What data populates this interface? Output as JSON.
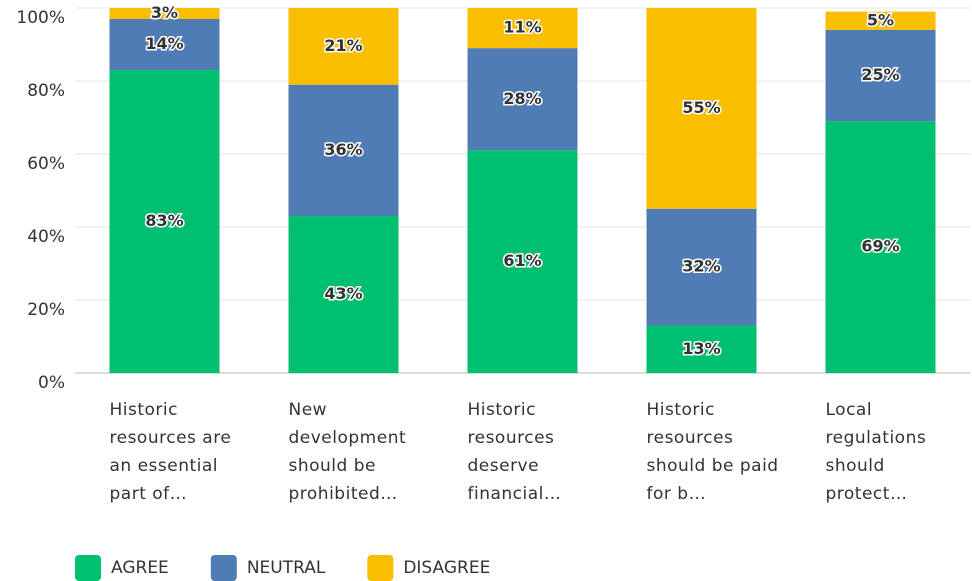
{
  "chart_data": {
    "type": "stacked_bar",
    "categories": [
      "Historic resources are an essential part of…",
      "New development should be prohibited…",
      "Historic resources deserve financial…",
      "Historic resources should be paid for b…",
      "Local regulations should protect…"
    ],
    "series": [
      {
        "name": "AGREE",
        "color": "#00bf6f",
        "values": [
          83,
          43,
          61,
          13,
          69
        ],
        "value_labels": [
          "83%",
          "43%",
          "61%",
          "13%",
          "69%"
        ]
      },
      {
        "name": "NEUTRAL",
        "color": "#507cb6",
        "values": [
          14,
          36,
          28,
          32,
          25
        ],
        "value_labels": [
          "14%",
          "36%",
          "28%",
          "32%",
          "25%"
        ]
      },
      {
        "name": "DISAGREE",
        "color": "#f9be00",
        "values": [
          3,
          21,
          11,
          55,
          5
        ],
        "value_labels": [
          "3%",
          "21%",
          "11%",
          "55%",
          "5%"
        ]
      }
    ],
    "ylim": [
      0,
      100
    ],
    "yticks": [
      {
        "value": 0,
        "label": "0%"
      },
      {
        "value": 20,
        "label": "20%"
      },
      {
        "value": 40,
        "label": "40%"
      },
      {
        "value": 60,
        "label": "60%"
      },
      {
        "value": 80,
        "label": "80%"
      },
      {
        "value": 100,
        "label": "100%"
      }
    ],
    "grid": true,
    "legend": "bottom"
  }
}
